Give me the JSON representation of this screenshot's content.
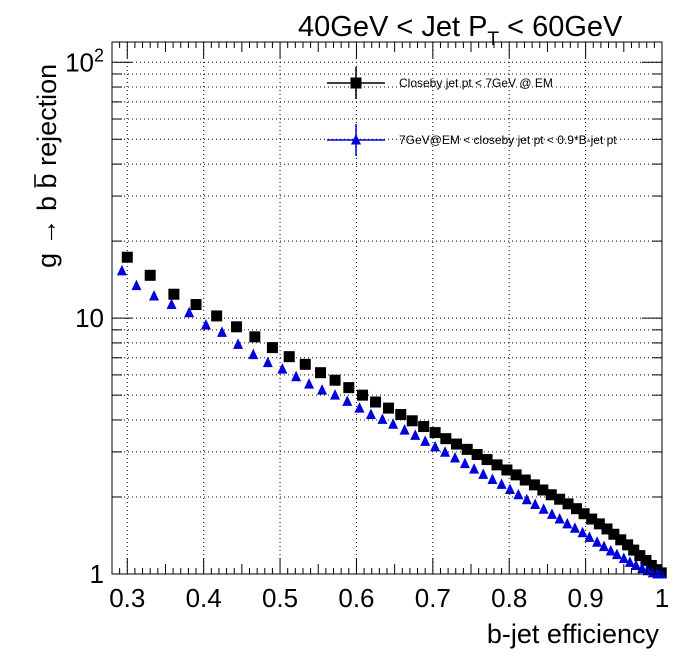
{
  "chart_data": {
    "type": "scatter",
    "title": "40GeV < Jet P_T < 60GeV",
    "title_main": "40GeV < Jet P",
    "title_sub": "T",
    "title_tail": " < 60GeV",
    "xlabel": "b-jet efficiency",
    "ylabel_parts": {
      "pre": "g → b ",
      "bbar": "b",
      "post": " rejection"
    },
    "xlim": [
      0.28,
      1.0
    ],
    "ylim": [
      1,
      120
    ],
    "yscale": "log",
    "grid": true,
    "legend_position": "top-right",
    "x_ticks": [
      "0.3",
      "0.4",
      "0.5",
      "0.6",
      "0.7",
      "0.8",
      "0.9",
      "1"
    ],
    "y_ticks": [
      {
        "value": 1,
        "label": "1"
      },
      {
        "value": 10,
        "label": "10"
      },
      {
        "value": 100,
        "base": "10",
        "exp": "2"
      }
    ],
    "series": [
      {
        "name": "Closeby jet pt < 7GeV @ EM",
        "color": "#000000",
        "marker": "square",
        "x": [
          0.3,
          0.33,
          0.361,
          0.39,
          0.417,
          0.443,
          0.467,
          0.49,
          0.512,
          0.533,
          0.553,
          0.572,
          0.59,
          0.608,
          0.625,
          0.642,
          0.658,
          0.673,
          0.688,
          0.703,
          0.717,
          0.731,
          0.745,
          0.758,
          0.771,
          0.784,
          0.797,
          0.809,
          0.821,
          0.833,
          0.844,
          0.855,
          0.866,
          0.877,
          0.888,
          0.898,
          0.908,
          0.918,
          0.928,
          0.937,
          0.946,
          0.955,
          0.963,
          0.971,
          0.979,
          0.986,
          0.993,
          0.999
        ],
        "y": [
          17.3,
          14.7,
          12.4,
          11.3,
          10.2,
          9.25,
          8.45,
          7.67,
          7.07,
          6.6,
          6.12,
          5.72,
          5.35,
          5.0,
          4.7,
          4.45,
          4.2,
          3.97,
          3.77,
          3.57,
          3.38,
          3.22,
          3.07,
          2.93,
          2.8,
          2.67,
          2.55,
          2.44,
          2.33,
          2.23,
          2.13,
          2.04,
          1.96,
          1.88,
          1.8,
          1.72,
          1.64,
          1.57,
          1.5,
          1.43,
          1.36,
          1.3,
          1.24,
          1.18,
          1.13,
          1.08,
          1.04,
          1.01
        ]
      },
      {
        "name": "7GeV@EM < closeby jet pt < 0.9*B-jet pt",
        "color": "#0000dd",
        "marker": "triangle",
        "x": [
          0.293,
          0.312,
          0.335,
          0.358,
          0.381,
          0.403,
          0.424,
          0.445,
          0.465,
          0.484,
          0.503,
          0.521,
          0.538,
          0.555,
          0.572,
          0.588,
          0.604,
          0.619,
          0.634,
          0.648,
          0.663,
          0.677,
          0.69,
          0.703,
          0.716,
          0.729,
          0.742,
          0.754,
          0.766,
          0.778,
          0.79,
          0.801,
          0.812,
          0.823,
          0.834,
          0.845,
          0.856,
          0.866,
          0.876,
          0.886,
          0.896,
          0.905,
          0.915,
          0.924,
          0.933,
          0.941,
          0.95,
          0.958,
          0.966,
          0.974,
          0.981,
          0.988,
          0.994,
          0.999
        ],
        "y": [
          15.3,
          13.4,
          12.2,
          11.3,
          10.5,
          9.4,
          8.8,
          7.9,
          7.2,
          6.7,
          6.32,
          5.9,
          5.52,
          5.23,
          5.0,
          4.73,
          4.45,
          4.2,
          4.02,
          3.85,
          3.65,
          3.48,
          3.3,
          3.14,
          2.99,
          2.84,
          2.7,
          2.57,
          2.45,
          2.34,
          2.24,
          2.14,
          2.04,
          1.95,
          1.87,
          1.79,
          1.71,
          1.64,
          1.57,
          1.51,
          1.45,
          1.39,
          1.33,
          1.28,
          1.23,
          1.19,
          1.15,
          1.11,
          1.08,
          1.05,
          1.03,
          1.01,
          1.0,
          1.0
        ]
      }
    ]
  }
}
